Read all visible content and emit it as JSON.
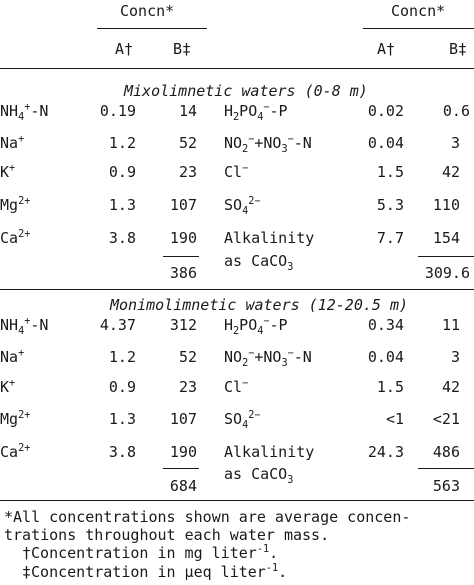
{
  "header": {
    "left_group": "Concn*",
    "right_group": "Concn*",
    "col_a": "A†",
    "col_b": "B‡"
  },
  "sections": [
    {
      "title": "Mixolimnetic waters (0-8 m)",
      "left_rows": [
        {
          "label": "NH4+-N",
          "a": "0.19",
          "b": "14"
        },
        {
          "label": "Na+",
          "a": "1.2",
          "b": "52"
        },
        {
          "label": "K+",
          "a": "0.9",
          "b": "23"
        },
        {
          "label": "Mg2+",
          "a": "1.3",
          "b": "107"
        },
        {
          "label": "Ca2+",
          "a": "3.8",
          "b": "190"
        }
      ],
      "left_total": "386",
      "right_rows": [
        {
          "label": "H2PO4−-P",
          "a": "0.02",
          "b": "0.6"
        },
        {
          "label": "NO2−+NO3−-N",
          "a": "0.04",
          "b": "3"
        },
        {
          "label": "Cl−",
          "a": "1.5",
          "b": "42"
        },
        {
          "label": "SO42−",
          "a": "5.3",
          "b": "110"
        },
        {
          "label": "Alkalinity as CaCO3",
          "a": "7.7",
          "b": "154"
        }
      ],
      "right_total": "309.6"
    },
    {
      "title": "Monimolimnetic waters (12-20.5 m)",
      "left_rows": [
        {
          "label": "NH4+-N",
          "a": "4.37",
          "b": "312"
        },
        {
          "label": "Na+",
          "a": "1.2",
          "b": "52"
        },
        {
          "label": "K+",
          "a": "0.9",
          "b": "23"
        },
        {
          "label": "Mg2+",
          "a": "1.3",
          "b": "107"
        },
        {
          "label": "Ca2+",
          "a": "3.8",
          "b": "190"
        }
      ],
      "left_total": "684",
      "right_rows": [
        {
          "label": "H2PO4−-P",
          "a": "0.34",
          "b": "11"
        },
        {
          "label": "NO2−+NO3−-N",
          "a": "0.04",
          "b": "3"
        },
        {
          "label": "Cl−",
          "a": "1.5",
          "b": "42"
        },
        {
          "label": "SO42−",
          "a": "<1",
          "b": "<21"
        },
        {
          "label": "Alkalinity as CaCO3",
          "a": "24.3",
          "b": "486"
        }
      ],
      "right_total": "563"
    }
  ],
  "footnotes": [
    "*All concentrations shown are average concen-",
    "trations throughout each water mass.",
    "†Concentration in mg liter-1.",
    "‡Concentration in µeq liter-1."
  ]
}
